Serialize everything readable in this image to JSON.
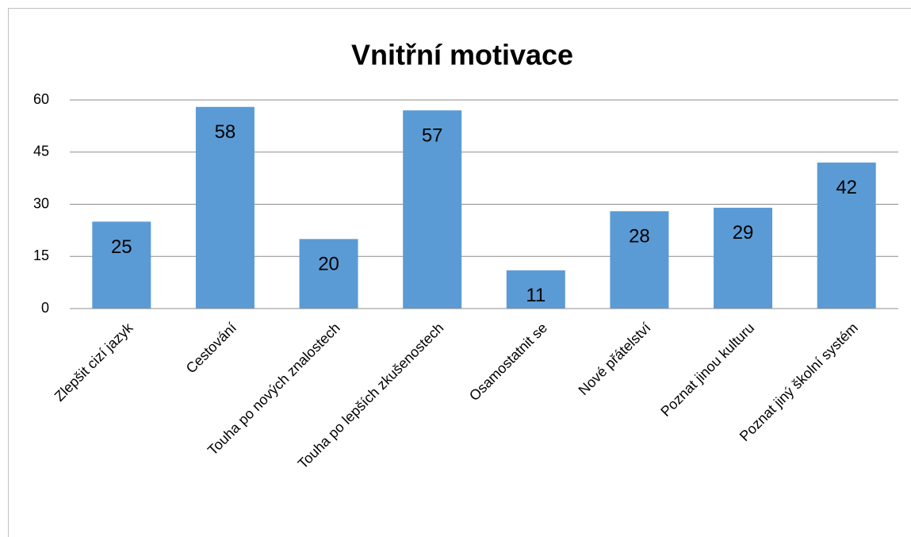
{
  "chart_data": {
    "type": "bar",
    "title": "Vnitřní motivace",
    "categories": [
      "Zlepšit cizí jazyk",
      "Cestování",
      "Touha po nových znalostech",
      "Touha po lepších zkušenostech",
      "Osamostatnit se",
      "Nové přátelství",
      "Poznat jinou kulturu",
      "Poznat jiný školní systém"
    ],
    "values": [
      25,
      58,
      20,
      57,
      11,
      28,
      29,
      42
    ],
    "color": "#5b9bd5",
    "ylim": [
      0,
      60
    ],
    "yticks": [
      0,
      15,
      30,
      45,
      60
    ],
    "grid": true
  }
}
